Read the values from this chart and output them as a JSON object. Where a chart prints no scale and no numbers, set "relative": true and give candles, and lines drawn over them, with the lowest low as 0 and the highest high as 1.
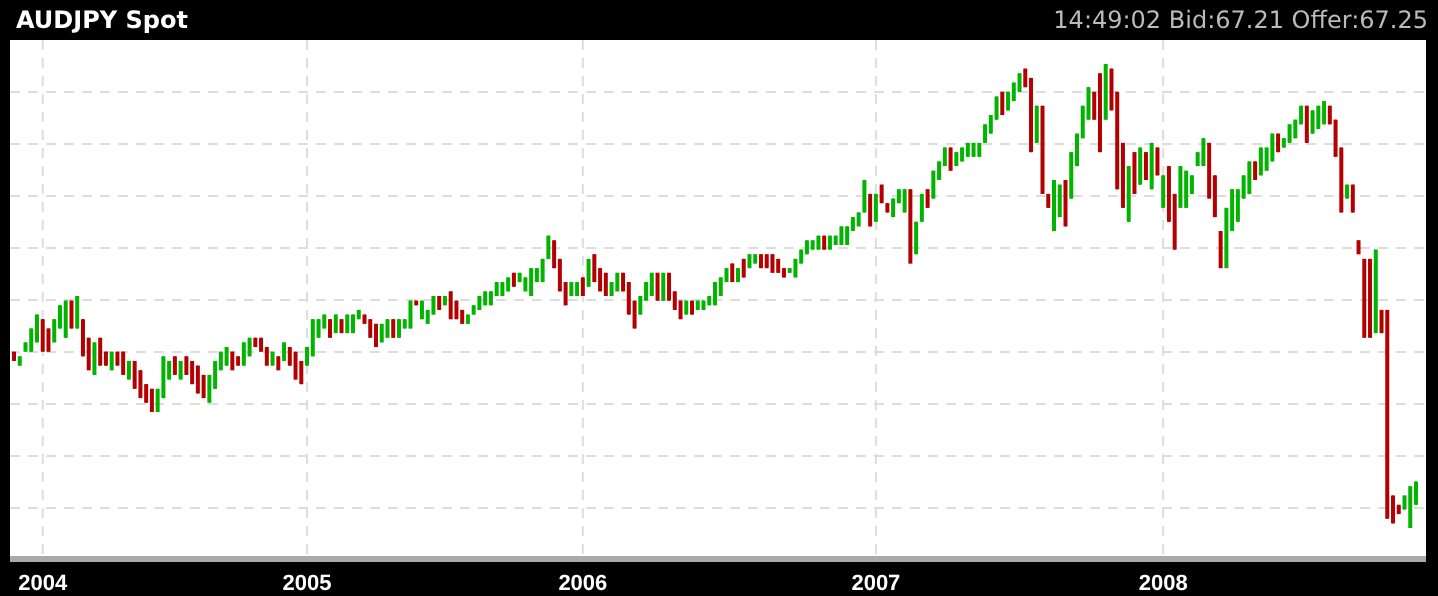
{
  "chart_data": {
    "type": "candlestick",
    "title": "AUDJPY Spot",
    "subtitle": "14:49:02 Bid:67.21 Offer:67.25",
    "relative": true,
    "grid": true,
    "colors": [
      "#b40000",
      "#00b400",
      "#00b400",
      "#00b400",
      "#00b400",
      "#b40000",
      "#b40000",
      "#00b400",
      "#00b400",
      "#00b400",
      "#b40000",
      "#00b400",
      "#b40000",
      "#b40000",
      "#00b400",
      "#b40000",
      "#b40000",
      "#00b400",
      "#b40000",
      "#b40000",
      "#00b400",
      "#b40000",
      "#b40000",
      "#b40000",
      "#b40000",
      "#00b400",
      "#00b400",
      "#00b400",
      "#b40000",
      "#00b400",
      "#b40000",
      "#b40000",
      "#b40000",
      "#b40000",
      "#00b400",
      "#00b400",
      "#00b400",
      "#00b400",
      "#b40000",
      "#b40000",
      "#00b400",
      "#00b400",
      "#b40000",
      "#b40000",
      "#b40000",
      "#00b400",
      "#b40000",
      "#00b400",
      "#b40000",
      "#b40000",
      "#b40000",
      "#00b400",
      "#00b400",
      "#00b400",
      "#00b400",
      "#b40000",
      "#00b400",
      "#b40000",
      "#00b400",
      "#00b400",
      "#00b400",
      "#b40000",
      "#b40000",
      "#b40000",
      "#00b400",
      "#00b400",
      "#b40000",
      "#00b400",
      "#00b400",
      "#00b400",
      "#b40000",
      "#00b400",
      "#00b400",
      "#00b400",
      "#b40000",
      "#00b400",
      "#b40000",
      "#b40000",
      "#b40000",
      "#00b400",
      "#00b400",
      "#00b400",
      "#00b400",
      "#00b400",
      "#00b400",
      "#00b400",
      "#00b400",
      "#b40000",
      "#00b400",
      "#00b400",
      "#00b400",
      "#00b400",
      "#00b400",
      "#00b400",
      "#b40000",
      "#b40000",
      "#b40000",
      "#00b400",
      "#00b400",
      "#b40000",
      "#00b400",
      "#b40000",
      "#b40000",
      "#b40000",
      "#00b400",
      "#00b400",
      "#b40000",
      "#b40000",
      "#b40000",
      "#00b400",
      "#00b400",
      "#00b400",
      "#b40000",
      "#00b400",
      "#b40000",
      "#b40000",
      "#b40000",
      "#00b400",
      "#b40000",
      "#00b400",
      "#00b400",
      "#00b400",
      "#00b400",
      "#00b400",
      "#00b400",
      "#b40000",
      "#00b400",
      "#b40000",
      "#00b400",
      "#00b400",
      "#b40000",
      "#b40000",
      "#b40000",
      "#b40000",
      "#b40000",
      "#00b400",
      "#00b400",
      "#00b400",
      "#00b400",
      "#00b400",
      "#00b400",
      "#b40000",
      "#00b400",
      "#00b400",
      "#00b400",
      "#00b400",
      "#00b400",
      "#00b400",
      "#00b400",
      "#b40000",
      "#00b400",
      "#b40000",
      "#b40000",
      "#00b400",
      "#00b400",
      "#00b400",
      "#b40000",
      "#00b400",
      "#00b400",
      "#b40000",
      "#00b400",
      "#00b400",
      "#00b400",
      "#b40000",
      "#00b400",
      "#00b400",
      "#00b400",
      "#00b400",
      "#00b400",
      "#00b400",
      "#00b400",
      "#00b400",
      "#b40000",
      "#00b400",
      "#00b400",
      "#00b400",
      "#b40000",
      "#b40000",
      "#00b400",
      "#b40000",
      "#b40000",
      "#00b400",
      "#00b400",
      "#b40000",
      "#00b400",
      "#00b400",
      "#00b400",
      "#00b400",
      "#b40000",
      "#b40000",
      "#00b400",
      "#b40000",
      "#b40000",
      "#b40000",
      "#00b400",
      "#b40000",
      "#00b400",
      "#b40000",
      "#00b400",
      "#b40000",
      "#00b400",
      "#b40000",
      "#b40000",
      "#00b400",
      "#00b400",
      "#00b400",
      "#00b400",
      "#00b400",
      "#b40000",
      "#b40000",
      "#b40000",
      "#00b400",
      "#00b400",
      "#00b400",
      "#00b400",
      "#00b400",
      "#b40000",
      "#00b400",
      "#00b400",
      "#00b400",
      "#b40000",
      "#00b400",
      "#00b400",
      "#00b400",
      "#00b400",
      "#b40000",
      "#00b400",
      "#00b400",
      "#00b400",
      "#b40000",
      "#b40000",
      "#b40000",
      "#00b400",
      "#b40000",
      "#b40000",
      "#b40000",
      "#b40000",
      "#00b400",
      "#b40000",
      "#b40000",
      "#b40000",
      "#b40000",
      "#00b400",
      "#00b400",
      "#00b400"
    ],
    "categories": [
      null,
      null,
      null,
      null,
      null,
      "2004",
      null,
      null,
      null,
      null,
      null,
      null,
      null,
      null,
      null,
      null,
      null,
      null,
      null,
      null,
      null,
      null,
      null,
      null,
      null,
      null,
      null,
      null,
      null,
      null,
      null,
      null,
      null,
      null,
      null,
      null,
      null,
      null,
      null,
      null,
      null,
      null,
      null,
      null,
      null,
      null,
      null,
      null,
      null,
      null,
      null,
      "2005",
      null,
      null,
      null,
      null,
      null,
      null,
      null,
      null,
      null,
      null,
      null,
      null,
      null,
      null,
      null,
      null,
      null,
      null,
      null,
      null,
      null,
      null,
      null,
      null,
      null,
      null,
      null,
      null,
      null,
      null,
      null,
      null,
      null,
      null,
      null,
      null,
      null,
      null,
      null,
      null,
      null,
      null,
      null,
      null,
      null,
      null,
      null,
      "2006",
      null,
      null,
      null,
      null,
      null,
      null,
      null,
      null,
      null,
      null,
      null,
      null,
      null,
      null,
      null,
      null,
      null,
      null,
      null,
      null,
      null,
      null,
      null,
      null,
      null,
      null,
      null,
      null,
      null,
      null,
      null,
      null,
      null,
      null,
      null,
      null,
      null,
      null,
      null,
      null,
      null,
      null,
      null,
      null,
      null,
      null,
      null,
      null,
      null,
      null,
      "2007",
      null,
      null,
      null,
      null,
      null,
      null,
      null,
      null,
      null,
      null,
      null,
      null,
      null,
      null,
      null,
      null,
      null,
      null,
      null,
      null,
      null,
      null,
      null,
      null,
      null,
      null,
      null,
      null,
      null,
      null,
      null,
      null,
      null,
      null,
      null,
      null,
      null,
      null,
      null,
      null,
      null,
      null,
      null,
      null,
      null,
      null,
      null,
      null,
      null,
      "2008",
      null,
      null,
      null,
      null,
      null,
      null,
      null,
      null,
      null,
      null,
      null,
      null,
      null,
      null,
      null,
      null,
      null,
      null,
      null,
      null,
      null,
      null,
      null,
      null,
      null,
      null,
      null,
      null,
      null,
      null,
      null,
      null,
      null,
      null,
      null,
      null,
      null,
      null,
      null,
      null,
      null,
      null,
      null,
      null
    ],
    "ohlc": [
      [
        0.38,
        0.38,
        0.36,
        0.36
      ],
      [
        0.35,
        0.37,
        0.35,
        0.37
      ],
      [
        0.38,
        0.4,
        0.38,
        0.4
      ],
      [
        0.38,
        0.43,
        0.38,
        0.43
      ],
      [
        0.4,
        0.46,
        0.4,
        0.46
      ],
      [
        0.45,
        0.45,
        0.38,
        0.38
      ],
      [
        0.43,
        0.43,
        0.38,
        0.38
      ],
      [
        0.4,
        0.45,
        0.4,
        0.45
      ],
      [
        0.43,
        0.48,
        0.43,
        0.48
      ],
      [
        0.41,
        0.49,
        0.41,
        0.49
      ],
      [
        0.49,
        0.49,
        0.43,
        0.43
      ],
      [
        0.43,
        0.5,
        0.43,
        0.5
      ],
      [
        0.45,
        0.45,
        0.37,
        0.37
      ],
      [
        0.41,
        0.41,
        0.34,
        0.34
      ],
      [
        0.33,
        0.4,
        0.33,
        0.4
      ],
      [
        0.41,
        0.41,
        0.35,
        0.35
      ],
      [
        0.38,
        0.38,
        0.35,
        0.35
      ],
      [
        0.34,
        0.38,
        0.34,
        0.38
      ],
      [
        0.38,
        0.38,
        0.35,
        0.35
      ],
      [
        0.38,
        0.38,
        0.33,
        0.33
      ],
      [
        0.32,
        0.36,
        0.32,
        0.36
      ],
      [
        0.36,
        0.36,
        0.3,
        0.3
      ],
      [
        0.34,
        0.34,
        0.28,
        0.28
      ],
      [
        0.31,
        0.31,
        0.27,
        0.27
      ],
      [
        0.3,
        0.3,
        0.25,
        0.25
      ],
      [
        0.25,
        0.3,
        0.25,
        0.3
      ],
      [
        0.28,
        0.37,
        0.28,
        0.37
      ],
      [
        0.32,
        0.36,
        0.32,
        0.36
      ],
      [
        0.37,
        0.37,
        0.33,
        0.33
      ],
      [
        0.32,
        0.36,
        0.32,
        0.36
      ],
      [
        0.37,
        0.37,
        0.33,
        0.33
      ],
      [
        0.36,
        0.36,
        0.31,
        0.31
      ],
      [
        0.35,
        0.35,
        0.29,
        0.29
      ],
      [
        0.33,
        0.33,
        0.28,
        0.28
      ],
      [
        0.27,
        0.33,
        0.27,
        0.33
      ],
      [
        0.3,
        0.36,
        0.3,
        0.36
      ],
      [
        0.34,
        0.38,
        0.34,
        0.38
      ],
      [
        0.35,
        0.39,
        0.35,
        0.39
      ],
      [
        0.38,
        0.38,
        0.34,
        0.34
      ],
      [
        0.37,
        0.37,
        0.35,
        0.35
      ],
      [
        0.35,
        0.4,
        0.35,
        0.4
      ],
      [
        0.37,
        0.41,
        0.37,
        0.41
      ],
      [
        0.41,
        0.41,
        0.39,
        0.39
      ],
      [
        0.41,
        0.41,
        0.38,
        0.38
      ],
      [
        0.39,
        0.39,
        0.35,
        0.35
      ],
      [
        0.35,
        0.38,
        0.35,
        0.38
      ],
      [
        0.37,
        0.37,
        0.34,
        0.34
      ],
      [
        0.36,
        0.4,
        0.36,
        0.4
      ],
      [
        0.39,
        0.39,
        0.35,
        0.35
      ],
      [
        0.38,
        0.38,
        0.32,
        0.32
      ],
      [
        0.36,
        0.36,
        0.31,
        0.31
      ],
      [
        0.35,
        0.39,
        0.35,
        0.39
      ],
      [
        0.37,
        0.45,
        0.37,
        0.45
      ],
      [
        0.41,
        0.45,
        0.41,
        0.45
      ],
      [
        0.43,
        0.46,
        0.43,
        0.46
      ],
      [
        0.45,
        0.45,
        0.41,
        0.41
      ],
      [
        0.42,
        0.46,
        0.42,
        0.46
      ],
      [
        0.45,
        0.45,
        0.42,
        0.42
      ],
      [
        0.42,
        0.46,
        0.42,
        0.46
      ],
      [
        0.42,
        0.46,
        0.42,
        0.46
      ],
      [
        0.45,
        0.47,
        0.45,
        0.47
      ],
      [
        0.46,
        0.46,
        0.44,
        0.44
      ],
      [
        0.45,
        0.45,
        0.41,
        0.41
      ],
      [
        0.44,
        0.44,
        0.39,
        0.39
      ],
      [
        0.4,
        0.44,
        0.4,
        0.44
      ],
      [
        0.41,
        0.45,
        0.41,
        0.45
      ],
      [
        0.45,
        0.45,
        0.41,
        0.41
      ],
      [
        0.41,
        0.45,
        0.41,
        0.45
      ],
      [
        0.43,
        0.45,
        0.43,
        0.45
      ],
      [
        0.43,
        0.49,
        0.43,
        0.49
      ],
      [
        0.49,
        0.49,
        0.48,
        0.48
      ],
      [
        0.45,
        0.49,
        0.45,
        0.49
      ],
      [
        0.44,
        0.47,
        0.44,
        0.47
      ],
      [
        0.46,
        0.5,
        0.46,
        0.5
      ],
      [
        0.5,
        0.5,
        0.47,
        0.47
      ],
      [
        0.48,
        0.5,
        0.48,
        0.5
      ],
      [
        0.51,
        0.51,
        0.45,
        0.45
      ],
      [
        0.49,
        0.49,
        0.45,
        0.45
      ],
      [
        0.47,
        0.47,
        0.44,
        0.44
      ],
      [
        0.44,
        0.46,
        0.44,
        0.46
      ],
      [
        0.46,
        0.48,
        0.46,
        0.48
      ],
      [
        0.47,
        0.5,
        0.47,
        0.5
      ],
      [
        0.48,
        0.51,
        0.48,
        0.51
      ],
      [
        0.48,
        0.51,
        0.48,
        0.51
      ],
      [
        0.5,
        0.53,
        0.5,
        0.53
      ],
      [
        0.5,
        0.53,
        0.5,
        0.53
      ],
      [
        0.51,
        0.54,
        0.51,
        0.54
      ],
      [
        0.55,
        0.55,
        0.52,
        0.52
      ],
      [
        0.53,
        0.55,
        0.53,
        0.55
      ],
      [
        0.51,
        0.54,
        0.51,
        0.54
      ],
      [
        0.5,
        0.56,
        0.5,
        0.56
      ],
      [
        0.53,
        0.56,
        0.53,
        0.56
      ],
      [
        0.53,
        0.58,
        0.53,
        0.58
      ],
      [
        0.58,
        0.63,
        0.58,
        0.63
      ],
      [
        0.62,
        0.62,
        0.56,
        0.56
      ],
      [
        0.58,
        0.58,
        0.51,
        0.51
      ],
      [
        0.53,
        0.53,
        0.48,
        0.48
      ],
      [
        0.5,
        0.53,
        0.5,
        0.53
      ],
      [
        0.5,
        0.53,
        0.5,
        0.53
      ],
      [
        0.54,
        0.54,
        0.5,
        0.5
      ],
      [
        0.52,
        0.58,
        0.52,
        0.58
      ],
      [
        0.59,
        0.59,
        0.53,
        0.53
      ],
      [
        0.56,
        0.56,
        0.51,
        0.51
      ],
      [
        0.55,
        0.55,
        0.5,
        0.5
      ],
      [
        0.5,
        0.53,
        0.5,
        0.53
      ],
      [
        0.51,
        0.55,
        0.51,
        0.55
      ],
      [
        0.55,
        0.55,
        0.51,
        0.51
      ],
      [
        0.53,
        0.53,
        0.46,
        0.46
      ],
      [
        0.49,
        0.49,
        0.43,
        0.43
      ],
      [
        0.46,
        0.5,
        0.46,
        0.5
      ],
      [
        0.49,
        0.53,
        0.49,
        0.53
      ],
      [
        0.5,
        0.55,
        0.5,
        0.55
      ],
      [
        0.55,
        0.55,
        0.49,
        0.49
      ],
      [
        0.49,
        0.55,
        0.49,
        0.55
      ],
      [
        0.55,
        0.55,
        0.49,
        0.49
      ],
      [
        0.51,
        0.51,
        0.47,
        0.47
      ],
      [
        0.49,
        0.49,
        0.45,
        0.45
      ],
      [
        0.46,
        0.49,
        0.46,
        0.49
      ],
      [
        0.49,
        0.49,
        0.46,
        0.46
      ],
      [
        0.47,
        0.49,
        0.47,
        0.49
      ],
      [
        0.47,
        0.49,
        0.47,
        0.49
      ],
      [
        0.48,
        0.5,
        0.48,
        0.5
      ],
      [
        0.48,
        0.53,
        0.48,
        0.53
      ],
      [
        0.5,
        0.54,
        0.5,
        0.54
      ],
      [
        0.53,
        0.56,
        0.53,
        0.56
      ],
      [
        0.57,
        0.57,
        0.53,
        0.53
      ],
      [
        0.53,
        0.56,
        0.53,
        0.56
      ],
      [
        0.58,
        0.58,
        0.54,
        0.54
      ],
      [
        0.56,
        0.59,
        0.56,
        0.59
      ],
      [
        0.57,
        0.59,
        0.57,
        0.59
      ],
      [
        0.59,
        0.59,
        0.56,
        0.56
      ],
      [
        0.59,
        0.59,
        0.56,
        0.56
      ],
      [
        0.59,
        0.59,
        0.55,
        0.55
      ],
      [
        0.58,
        0.58,
        0.55,
        0.55
      ],
      [
        0.56,
        0.56,
        0.54,
        0.54
      ],
      [
        0.55,
        0.56,
        0.55,
        0.56
      ],
      [
        0.54,
        0.58,
        0.54,
        0.58
      ],
      [
        0.57,
        0.6,
        0.57,
        0.6
      ],
      [
        0.59,
        0.62,
        0.59,
        0.62
      ],
      [
        0.6,
        0.62,
        0.6,
        0.62
      ],
      [
        0.6,
        0.63,
        0.6,
        0.63
      ],
      [
        0.63,
        0.63,
        0.6,
        0.6
      ],
      [
        0.6,
        0.63,
        0.6,
        0.63
      ],
      [
        0.61,
        0.63,
        0.61,
        0.63
      ],
      [
        0.61,
        0.65,
        0.61,
        0.65
      ],
      [
        0.61,
        0.65,
        0.61,
        0.65
      ],
      [
        0.64,
        0.67,
        0.64,
        0.67
      ],
      [
        0.65,
        0.68,
        0.65,
        0.68
      ],
      [
        0.68,
        0.75,
        0.68,
        0.75
      ],
      [
        0.72,
        0.72,
        0.65,
        0.65
      ],
      [
        0.66,
        0.72,
        0.66,
        0.72
      ],
      [
        0.74,
        0.74,
        0.7,
        0.7
      ],
      [
        0.7,
        0.7,
        0.68,
        0.68
      ],
      [
        0.67,
        0.71,
        0.67,
        0.71
      ],
      [
        0.7,
        0.73,
        0.7,
        0.73
      ],
      [
        0.68,
        0.73,
        0.68,
        0.73
      ],
      [
        0.73,
        0.73,
        0.57,
        0.57
      ],
      [
        0.59,
        0.66,
        0.59,
        0.66
      ],
      [
        0.66,
        0.72,
        0.66,
        0.72
      ],
      [
        0.73,
        0.73,
        0.69,
        0.69
      ],
      [
        0.71,
        0.77,
        0.71,
        0.77
      ],
      [
        0.75,
        0.79,
        0.75,
        0.79
      ],
      [
        0.78,
        0.82,
        0.78,
        0.82
      ],
      [
        0.82,
        0.82,
        0.77,
        0.77
      ],
      [
        0.78,
        0.81,
        0.78,
        0.81
      ],
      [
        0.79,
        0.82,
        0.79,
        0.82
      ],
      [
        0.8,
        0.83,
        0.8,
        0.83
      ],
      [
        0.8,
        0.83,
        0.8,
        0.83
      ],
      [
        0.8,
        0.83,
        0.8,
        0.83
      ],
      [
        0.83,
        0.87,
        0.83,
        0.87
      ],
      [
        0.85,
        0.89,
        0.85,
        0.89
      ],
      [
        0.88,
        0.93,
        0.88,
        0.93
      ],
      [
        0.94,
        0.94,
        0.89,
        0.89
      ],
      [
        0.9,
        0.94,
        0.9,
        0.94
      ],
      [
        0.92,
        0.96,
        0.92,
        0.96
      ],
      [
        0.94,
        0.98,
        0.94,
        0.98
      ],
      [
        0.99,
        0.99,
        0.95,
        0.95
      ],
      [
        0.97,
        0.97,
        0.81,
        0.81
      ],
      [
        0.83,
        0.91,
        0.83,
        0.91
      ],
      [
        0.91,
        0.91,
        0.72,
        0.72
      ],
      [
        0.72,
        0.72,
        0.69,
        0.69
      ],
      [
        0.64,
        0.75,
        0.64,
        0.75
      ],
      [
        0.67,
        0.74,
        0.67,
        0.74
      ],
      [
        0.75,
        0.75,
        0.65,
        0.65
      ],
      [
        0.71,
        0.81,
        0.71,
        0.81
      ],
      [
        0.78,
        0.85,
        0.78,
        0.85
      ],
      [
        0.84,
        0.91,
        0.84,
        0.91
      ],
      [
        0.88,
        0.95,
        0.88,
        0.95
      ],
      [
        0.94,
        0.94,
        0.88,
        0.88
      ],
      [
        0.98,
        0.98,
        0.81,
        0.81
      ],
      [
        0.88,
        1,
        0.88,
        1
      ],
      [
        0.99,
        0.99,
        0.9,
        0.9
      ],
      [
        0.94,
        0.94,
        0.73,
        0.73
      ],
      [
        0.83,
        0.83,
        0.69,
        0.69
      ],
      [
        0.66,
        0.78,
        0.66,
        0.78
      ],
      [
        0.81,
        0.81,
        0.72,
        0.72
      ],
      [
        0.74,
        0.82,
        0.74,
        0.82
      ],
      [
        0.81,
        0.81,
        0.75,
        0.75
      ],
      [
        0.73,
        0.83,
        0.73,
        0.83
      ],
      [
        0.82,
        0.82,
        0.76,
        0.76
      ],
      [
        0.69,
        0.76,
        0.69,
        0.76
      ],
      [
        0.78,
        0.78,
        0.66,
        0.66
      ],
      [
        0.72,
        0.72,
        0.6,
        0.6
      ],
      [
        0.69,
        0.78,
        0.69,
        0.78
      ],
      [
        0.69,
        0.77,
        0.69,
        0.77
      ],
      [
        0.72,
        0.76,
        0.72,
        0.76
      ],
      [
        0.78,
        0.81,
        0.78,
        0.81
      ],
      [
        0.78,
        0.84,
        0.78,
        0.84
      ],
      [
        0.83,
        0.83,
        0.71,
        0.71
      ],
      [
        0.76,
        0.76,
        0.67,
        0.67
      ],
      [
        0.64,
        0.64,
        0.56,
        0.56
      ],
      [
        0.56,
        0.69,
        0.56,
        0.69
      ],
      [
        0.64,
        0.73,
        0.64,
        0.73
      ],
      [
        0.66,
        0.73,
        0.66,
        0.73
      ],
      [
        0.71,
        0.76,
        0.71,
        0.76
      ],
      [
        0.72,
        0.79,
        0.72,
        0.79
      ],
      [
        0.79,
        0.79,
        0.75,
        0.75
      ],
      [
        0.76,
        0.82,
        0.76,
        0.82
      ],
      [
        0.77,
        0.82,
        0.77,
        0.82
      ],
      [
        0.79,
        0.85,
        0.79,
        0.85
      ],
      [
        0.85,
        0.85,
        0.81,
        0.81
      ],
      [
        0.82,
        0.84,
        0.82,
        0.84
      ],
      [
        0.83,
        0.87,
        0.83,
        0.87
      ],
      [
        0.84,
        0.88,
        0.84,
        0.88
      ],
      [
        0.87,
        0.91,
        0.87,
        0.91
      ],
      [
        0.91,
        0.91,
        0.83,
        0.83
      ],
      [
        0.85,
        0.9,
        0.85,
        0.9
      ],
      [
        0.86,
        0.91,
        0.86,
        0.91
      ],
      [
        0.87,
        0.92,
        0.87,
        0.92
      ],
      [
        0.91,
        0.91,
        0.87,
        0.87
      ],
      [
        0.88,
        0.88,
        0.8,
        0.8
      ],
      [
        0.82,
        0.82,
        0.68,
        0.68
      ],
      [
        0.71,
        0.74,
        0.71,
        0.74
      ],
      [
        0.74,
        0.74,
        0.68,
        0.68
      ],
      [
        0.62,
        0.62,
        0.59,
        0.59
      ],
      [
        0.58,
        0.58,
        0.41,
        0.41
      ],
      [
        0.58,
        0.58,
        0.41,
        0.41
      ],
      [
        0.42,
        0.6,
        0.42,
        0.6
      ],
      [
        0.47,
        0.47,
        0.42,
        0.42
      ],
      [
        0.47,
        0.47,
        0.02,
        0.02
      ],
      [
        0.07,
        0.07,
        0.01,
        0.01
      ],
      [
        0.05,
        0.05,
        0.03,
        0.03
      ],
      [
        0.04,
        0.07,
        0.04,
        0.07
      ],
      [
        0,
        0.09,
        0,
        0.09
      ],
      [
        0.05,
        0.1,
        0.05,
        0.1
      ]
    ]
  }
}
